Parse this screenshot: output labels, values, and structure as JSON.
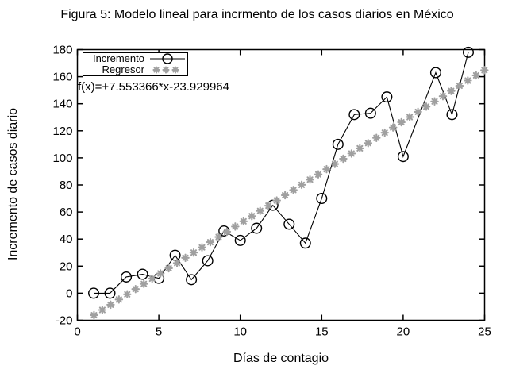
{
  "title": "Figura 5: Modelo lineal para incrmento de los casos diarios en México",
  "annotation": "f(x)=+7.553366*x-23.929964",
  "colors": {
    "incremento_line": "#000000",
    "regresor_points": "#a0a0a0",
    "text": "#000000",
    "background": "#ffffff"
  },
  "legend": {
    "position": "top-left-inside",
    "entries": [
      {
        "label": "Incremento",
        "marker": "line-with-open-circle",
        "color": "#000000"
      },
      {
        "label": "Regresor",
        "marker": "three-asterisks",
        "color": "#a0a0a0"
      }
    ]
  },
  "chart_data": {
    "type": "line",
    "title": "Figura 5: Modelo lineal para incrmento de los casos diarios en México",
    "xlabel": "Días de contagio",
    "ylabel": "Incremento de casos diario",
    "xlim": [
      0,
      25
    ],
    "ylim": [
      -20,
      180
    ],
    "xticks": [
      0,
      5,
      10,
      15,
      20,
      25
    ],
    "yticks": [
      -20,
      0,
      20,
      40,
      60,
      80,
      100,
      120,
      140,
      160,
      180
    ],
    "grid": false,
    "series": [
      {
        "name": "Incremento",
        "render": "line+marker",
        "marker": "open-circle",
        "color": "#000000",
        "x": [
          1,
          2,
          3,
          4,
          5,
          6,
          7,
          8,
          9,
          10,
          11,
          12,
          13,
          14,
          15,
          16,
          17,
          18,
          19,
          20,
          22,
          23,
          24
        ],
        "y": [
          0,
          0,
          12,
          14,
          11,
          28,
          10,
          24,
          46,
          39,
          48,
          65,
          51,
          37,
          70,
          110,
          132,
          133,
          145,
          101,
          163,
          132,
          178
        ]
      },
      {
        "name": "Regresor",
        "render": "function-samples",
        "marker": "asterisk",
        "color": "#a0a0a0",
        "slope": 7.553366,
        "intercept": -23.929964,
        "x_start": 1.02,
        "x_step": 0.51,
        "x_end": 24.99
      }
    ]
  }
}
